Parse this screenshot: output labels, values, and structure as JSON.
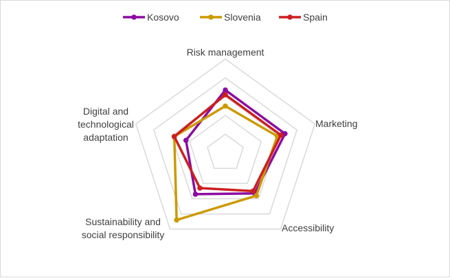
{
  "chart_data": {
    "type": "radar",
    "title": "",
    "axes": [
      [
        "Risk management"
      ],
      [
        "Marketing"
      ],
      [
        "Accessibility"
      ],
      [
        "Sustainability and",
        "social responsibility"
      ],
      [
        "Digital and",
        "technological",
        "adaptation"
      ]
    ],
    "rmax": 5,
    "grid_levels": [
      1,
      2,
      3,
      4,
      5
    ],
    "legend_position": "top",
    "series": [
      {
        "name": "Kosovo",
        "color": "#8B0DA0",
        "values": [
          3.35,
          3.33,
          2.65,
          2.7,
          2.2
        ]
      },
      {
        "name": "Slovenia",
        "color": "#CC9900",
        "values": [
          2.5,
          2.9,
          2.8,
          4.4,
          2.85
        ]
      },
      {
        "name": "Spain",
        "color": "#CC1F1F",
        "values": [
          3.1,
          3.1,
          2.5,
          2.3,
          2.85
        ]
      }
    ]
  }
}
